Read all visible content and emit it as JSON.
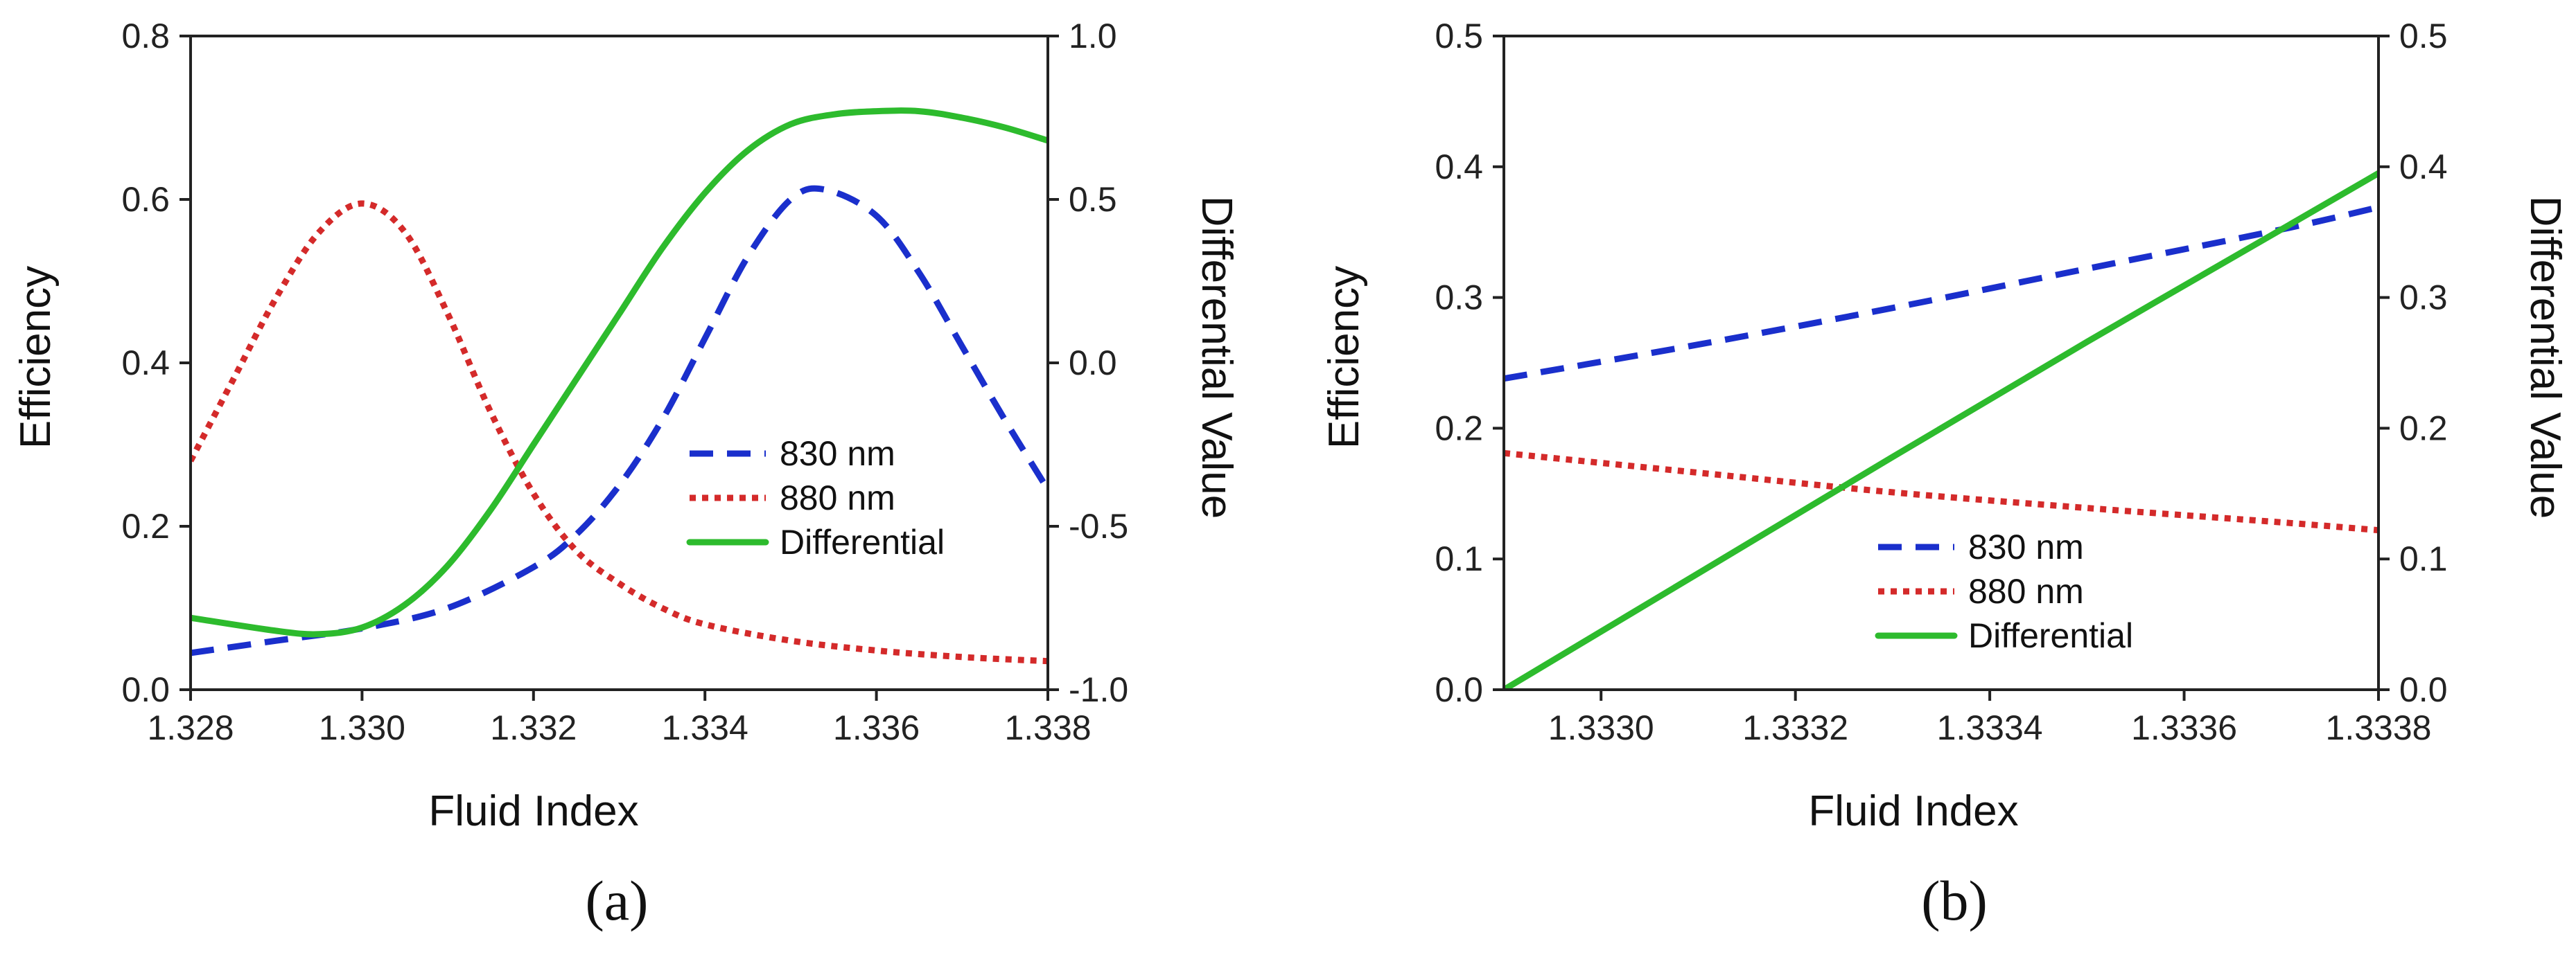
{
  "colors": {
    "s830": "#1a2fcc",
    "s880": "#d42a2a",
    "diff": "#2dbb2d"
  },
  "chart_data": [
    {
      "type": "line",
      "panel_label": "(a)",
      "xlabel": "Fluid Index",
      "ylabel": "Efficiency",
      "y2label": "Differential Value",
      "xlim": [
        1.328,
        1.338
      ],
      "ylim": [
        0,
        0.8
      ],
      "y2lim": [
        -1.0,
        1.0
      ],
      "xticks": [
        "1.328",
        "1.330",
        "1.332",
        "1.334",
        "1.336",
        "1.338"
      ],
      "xtick_values": [
        1.328,
        1.33,
        1.332,
        1.334,
        1.336,
        1.338
      ],
      "yticks": [
        "0.0",
        "0.2",
        "0.4",
        "0.6",
        "0.8"
      ],
      "ytick_values": [
        0,
        0.2,
        0.4,
        0.6,
        0.8
      ],
      "y2ticks": [
        "-1.0",
        "-0.5",
        "0.0",
        "0.5",
        "1.0"
      ],
      "y2tick_values": [
        -1.0,
        -0.5,
        0.0,
        0.5,
        1.0
      ],
      "legend": [
        "830 nm",
        "880 nm",
        "Differential"
      ],
      "series": [
        {
          "name": "830 nm",
          "axis": "left",
          "style": "dashed",
          "x": [
            1.328,
            1.329,
            1.33,
            1.331,
            1.332,
            1.3325,
            1.333,
            1.3335,
            1.334,
            1.3345,
            1.335,
            1.3354,
            1.336,
            1.3365,
            1.337,
            1.3375,
            1.338
          ],
          "y": [
            0.045,
            0.06,
            0.075,
            0.1,
            0.15,
            0.19,
            0.25,
            0.33,
            0.43,
            0.53,
            0.6,
            0.612,
            0.58,
            0.51,
            0.42,
            0.33,
            0.245
          ]
        },
        {
          "name": "880 nm",
          "axis": "left",
          "style": "dotted",
          "x": [
            1.328,
            1.3285,
            1.329,
            1.3295,
            1.33,
            1.3305,
            1.331,
            1.3315,
            1.332,
            1.3325,
            1.333,
            1.3335,
            1.334,
            1.335,
            1.336,
            1.337,
            1.338
          ],
          "y": [
            0.28,
            0.38,
            0.48,
            0.56,
            0.595,
            0.56,
            0.46,
            0.34,
            0.24,
            0.17,
            0.13,
            0.1,
            0.08,
            0.06,
            0.048,
            0.04,
            0.035
          ]
        },
        {
          "name": "Differential",
          "axis": "right",
          "style": "solid",
          "x": [
            1.328,
            1.329,
            1.3295,
            1.33,
            1.3305,
            1.331,
            1.3315,
            1.332,
            1.3325,
            1.333,
            1.3335,
            1.334,
            1.3345,
            1.335,
            1.3355,
            1.336,
            1.3365,
            1.337,
            1.3375,
            1.338
          ],
          "y": [
            -0.78,
            -0.82,
            -0.83,
            -0.81,
            -0.74,
            -0.62,
            -0.45,
            -0.25,
            -0.05,
            0.15,
            0.35,
            0.52,
            0.65,
            0.73,
            0.76,
            0.77,
            0.77,
            0.75,
            0.72,
            0.68
          ]
        }
      ]
    },
    {
      "type": "line",
      "panel_label": "(b)",
      "xlabel": "Fluid Index",
      "ylabel": "Efficiency",
      "y2label": "Differential Value",
      "xlim": [
        1.3329,
        1.3338
      ],
      "ylim": [
        0,
        0.5
      ],
      "y2lim": [
        0,
        0.5
      ],
      "xticks": [
        "1.3330",
        "1.3332",
        "1.3334",
        "1.3336",
        "1.3338"
      ],
      "xtick_values": [
        1.333,
        1.3332,
        1.3334,
        1.3336,
        1.3338
      ],
      "yticks": [
        "0.0",
        "0.1",
        "0.2",
        "0.3",
        "0.4",
        "0.5"
      ],
      "ytick_values": [
        0,
        0.1,
        0.2,
        0.3,
        0.4,
        0.5
      ],
      "y2ticks": [
        "0.0",
        "0.1",
        "0.2",
        "0.3",
        "0.4",
        "0.5"
      ],
      "y2tick_values": [
        0,
        0.1,
        0.2,
        0.3,
        0.4,
        0.5
      ],
      "legend": [
        "830 nm",
        "880 nm",
        "Differential"
      ],
      "series": [
        {
          "name": "830 nm",
          "axis": "left",
          "style": "dashed",
          "x": [
            1.3329,
            1.3331,
            1.3333,
            1.3335,
            1.3337,
            1.3338
          ],
          "y": [
            0.238,
            0.264,
            0.292,
            0.322,
            0.352,
            0.369
          ]
        },
        {
          "name": "880 nm",
          "axis": "left",
          "style": "dotted",
          "x": [
            1.3329,
            1.3331,
            1.3333,
            1.3335,
            1.3337,
            1.3338
          ],
          "y": [
            0.181,
            0.166,
            0.151,
            0.139,
            0.128,
            0.122
          ]
        },
        {
          "name": "Differential",
          "axis": "right",
          "style": "solid",
          "x": [
            1.3329,
            1.3331,
            1.3333,
            1.3335,
            1.3337,
            1.3338
          ],
          "y": [
            0.0,
            0.089,
            0.178,
            0.266,
            0.352,
            0.395
          ]
        }
      ]
    }
  ]
}
